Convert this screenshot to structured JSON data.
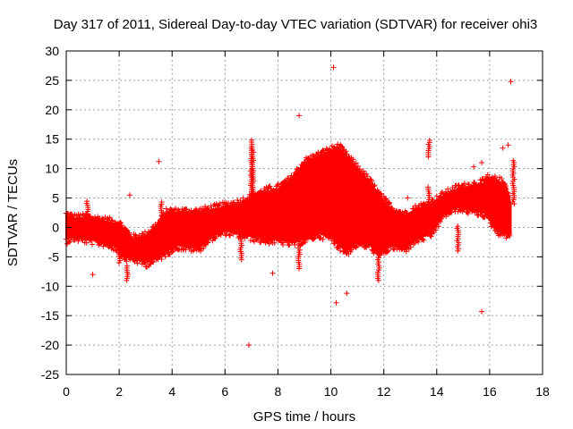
{
  "chart_data": {
    "type": "scatter",
    "title": "Day 317 of 2011, Sidereal Day-to-day VTEC variation (SDTVAR) for receiver ohi3",
    "xlabel": "GPS time / hours",
    "ylabel": "SDTVAR / TECUs",
    "xlim": [
      0,
      18
    ],
    "ylim": [
      -25,
      30
    ],
    "xticks": [
      0,
      2,
      4,
      6,
      8,
      10,
      12,
      14,
      16,
      18
    ],
    "yticks": [
      -25,
      -20,
      -15,
      -10,
      -5,
      0,
      5,
      10,
      15,
      20,
      25,
      30
    ],
    "grid": true,
    "marker": "+",
    "color": "#ff0000",
    "band": {
      "x": [
        0.0,
        0.3,
        0.8,
        1.5,
        2.0,
        2.2,
        2.5,
        3.0,
        3.5,
        3.8,
        4.2,
        5.0,
        5.5,
        6.0,
        6.5,
        7.0,
        7.5,
        8.0,
        8.5,
        9.0,
        9.5,
        10.0,
        10.3,
        10.6,
        11.0,
        11.5,
        11.8,
        12.3,
        12.8,
        13.2,
        13.8,
        14.3,
        14.8,
        15.3,
        15.8,
        16.3,
        16.6,
        16.8
      ],
      "upper": [
        2.0,
        1.5,
        1.5,
        1.0,
        0.5,
        -0.5,
        -2.0,
        -1.5,
        0.5,
        2.5,
        2.5,
        2.5,
        3.0,
        3.5,
        4.0,
        5.0,
        6.0,
        6.5,
        8.0,
        11.0,
        12.0,
        13.0,
        13.5,
        12.0,
        10.0,
        7.5,
        5.5,
        3.0,
        2.0,
        3.0,
        4.0,
        5.5,
        6.5,
        7.0,
        7.5,
        8.0,
        7.0,
        4.0
      ],
      "lower": [
        -2.0,
        -1.5,
        -2.0,
        -2.5,
        -3.5,
        -5.0,
        -5.0,
        -6.0,
        -5.0,
        -4.0,
        -3.0,
        -3.5,
        -1.5,
        -0.5,
        -1.0,
        -1.5,
        -2.0,
        -2.0,
        -2.5,
        -2.0,
        -1.0,
        -1.5,
        -3.0,
        -4.0,
        -2.5,
        -3.0,
        -4.5,
        -3.0,
        -3.5,
        -2.0,
        -1.0,
        2.5,
        3.5,
        3.0,
        2.5,
        -0.5,
        -1.0,
        -1.0
      ]
    },
    "spikes": [
      {
        "x": 7.0,
        "ymin": 4.0,
        "ymax": 15.0
      },
      {
        "x": 7.05,
        "ymin": 3.0,
        "ymax": 13.5
      },
      {
        "x": 6.6,
        "ymin": -5.5,
        "ymax": -1.0
      },
      {
        "x": 8.8,
        "ymin": -7.0,
        "ymax": -2.0
      },
      {
        "x": 11.8,
        "ymin": -9.0,
        "ymax": -3.0
      },
      {
        "x": 13.7,
        "ymin": 12.0,
        "ymax": 15.0
      },
      {
        "x": 13.7,
        "ymin": 3.0,
        "ymax": 7.0
      },
      {
        "x": 14.8,
        "ymin": -4.0,
        "ymax": 0.5
      },
      {
        "x": 2.3,
        "ymin": -9.0,
        "ymax": -6.5
      },
      {
        "x": 2.0,
        "ymin": -6.0,
        "ymax": -3.0
      },
      {
        "x": 16.9,
        "ymin": 4.0,
        "ymax": 11.5
      },
      {
        "x": 16.6,
        "ymin": 2.5,
        "ymax": 7.5
      },
      {
        "x": 0.8,
        "ymin": 2.0,
        "ymax": 4.5
      },
      {
        "x": 3.6,
        "ymin": 1.5,
        "ymax": 4.5
      },
      {
        "x": 12.2,
        "ymin": 2.5,
        "ymax": 4.5
      },
      {
        "x": 15.9,
        "ymin": 6.5,
        "ymax": 9.0
      }
    ],
    "outliers": [
      {
        "x": 10.1,
        "y": 27.2
      },
      {
        "x": 16.8,
        "y": 24.8
      },
      {
        "x": 8.8,
        "y": 19.0
      },
      {
        "x": 3.5,
        "y": 11.2
      },
      {
        "x": 15.4,
        "y": 10.3
      },
      {
        "x": 15.7,
        "y": 11.0
      },
      {
        "x": 16.5,
        "y": 13.5
      },
      {
        "x": 16.7,
        "y": 14.0
      },
      {
        "x": 2.4,
        "y": 5.5
      },
      {
        "x": 1.0,
        "y": -8.0
      },
      {
        "x": 7.8,
        "y": -7.8
      },
      {
        "x": 10.2,
        "y": -12.8
      },
      {
        "x": 10.6,
        "y": -11.2
      },
      {
        "x": 15.7,
        "y": -14.3
      },
      {
        "x": 6.9,
        "y": -20.0
      },
      {
        "x": 12.9,
        "y": 5.0
      }
    ]
  }
}
